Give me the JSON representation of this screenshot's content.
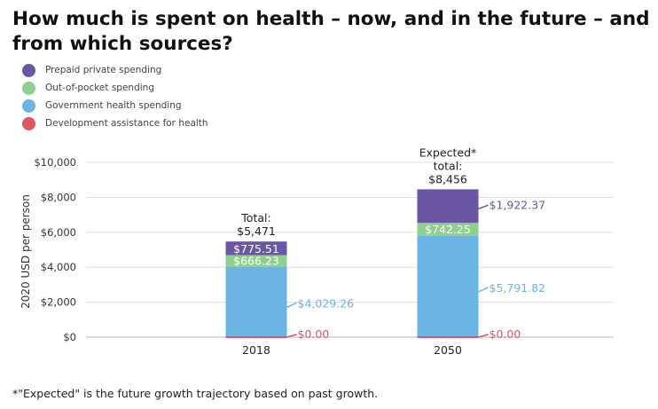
{
  "title": "How much is spent on health – now, and in the future – and from which sources?",
  "legend": [
    {
      "label": "Prepaid private spending",
      "color": "#6a56a4"
    },
    {
      "label": "Out-of-pocket spending",
      "color": "#8ed08e"
    },
    {
      "label": "Government health spending",
      "color": "#6ab4e6"
    },
    {
      "label": "Development assistance for health",
      "color": "#e0565e"
    }
  ],
  "footnote": "*\"Expected\" is the future growth trajectory based on past growth.",
  "chart_data": {
    "type": "bar",
    "stacked": true,
    "categories": [
      "2018",
      "2050"
    ],
    "ylabel": "2020 USD per person",
    "ylim": [
      0,
      10000
    ],
    "y_ticks": [
      0,
      2000,
      4000,
      6000,
      8000,
      10000
    ],
    "y_tick_labels": [
      "$0",
      "$2,000",
      "$4,000",
      "$6,000",
      "$8,000",
      "$10,000"
    ],
    "grid": true,
    "legend_position": "top-left",
    "series": [
      {
        "name": "Development assistance for health",
        "color": "#e0565e",
        "values": [
          0,
          0
        ],
        "labels": [
          "$0.00",
          "$0.00"
        ]
      },
      {
        "name": "Government health spending",
        "color": "#6ab4e6",
        "values": [
          4029.26,
          5791.82
        ],
        "labels": [
          "$4,029.26",
          "$5,791.82"
        ]
      },
      {
        "name": "Out-of-pocket spending",
        "color": "#8ed08e",
        "values": [
          666.23,
          742.25
        ],
        "labels": [
          "$666.23",
          "$742.25"
        ]
      },
      {
        "name": "Prepaid private spending",
        "color": "#6a56a4",
        "values": [
          775.51,
          1922.37
        ],
        "labels": [
          "$775.51",
          "$1,922.37"
        ]
      }
    ],
    "totals": [
      {
        "lines": [
          "Total:",
          "$5,471"
        ]
      },
      {
        "lines": [
          "Expected*",
          "total:",
          "$8,456"
        ]
      }
    ]
  }
}
